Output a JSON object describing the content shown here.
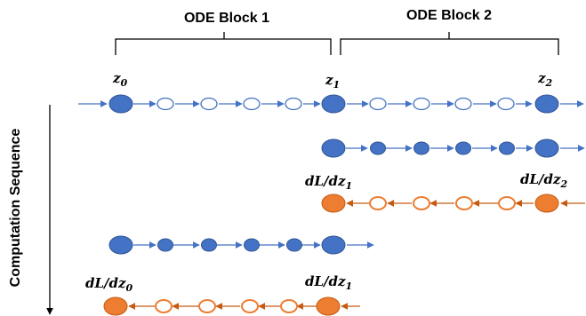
{
  "blocks": {
    "block1": "ODE Block 1",
    "block2": "ODE Block 2"
  },
  "labels": {
    "z0": "z",
    "z0_sub": "0",
    "z1_top": "z",
    "z1_top_sub": "1",
    "z2": "z",
    "z2_sub": "2",
    "dLdz1_row3": "dL/dz",
    "dLdz1_row3_sub": "1",
    "dLdz2": "dL/dz",
    "dLdz2_sub": "2",
    "dLdz0": "dL/dz",
    "dLdz0_sub": "0",
    "dLdz1_row5": "dL/dz",
    "dLdz1_row5_sub": "1"
  },
  "side_label": "Computation Sequence",
  "colors": {
    "blue_fill": "#4472c4",
    "blue_stroke": "#2f5597",
    "orange_fill": "#ed7d31",
    "orange_stroke": "#c55a11"
  }
}
